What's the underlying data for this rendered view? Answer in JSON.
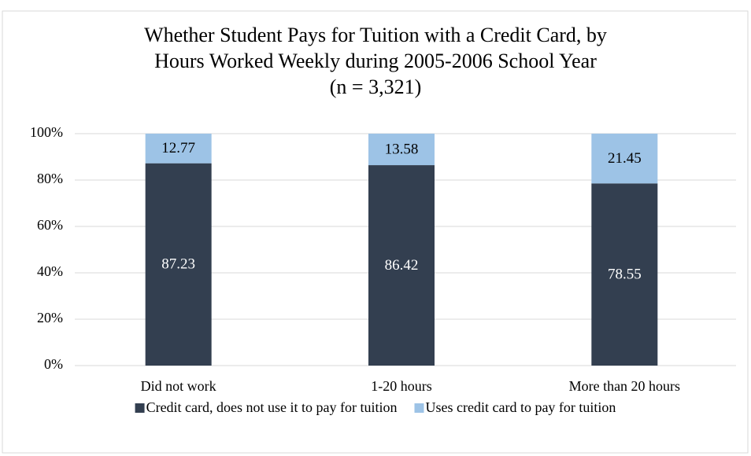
{
  "chart_data": {
    "type": "stacked_bar",
    "title": [
      "Whether Student Pays for Tuition with a Credit Card, by",
      "Hours Worked Weekly during 2005-2006 School Year",
      "(n = 3,321)"
    ],
    "categories": [
      "Did not work",
      "1-20 hours",
      "More than 20 hours"
    ],
    "series": [
      {
        "name": "Credit card, does not use it to pay for tuition",
        "color": "#333f50",
        "values": [
          87.23,
          86.42,
          78.55
        ]
      },
      {
        "name": "Uses credit card to pay for tuition",
        "color": "#9dc3e6",
        "values": [
          12.77,
          13.58,
          21.45
        ]
      }
    ],
    "ylim": [
      0,
      100
    ],
    "yticks": [
      {
        "value": 0,
        "label": "0%"
      },
      {
        "value": 20,
        "label": "20%"
      },
      {
        "value": 40,
        "label": "40%"
      },
      {
        "value": 60,
        "label": "60%"
      },
      {
        "value": 80,
        "label": "80%"
      },
      {
        "value": 100,
        "label": "100%"
      }
    ],
    "grid": true,
    "legend": "bottom"
  }
}
